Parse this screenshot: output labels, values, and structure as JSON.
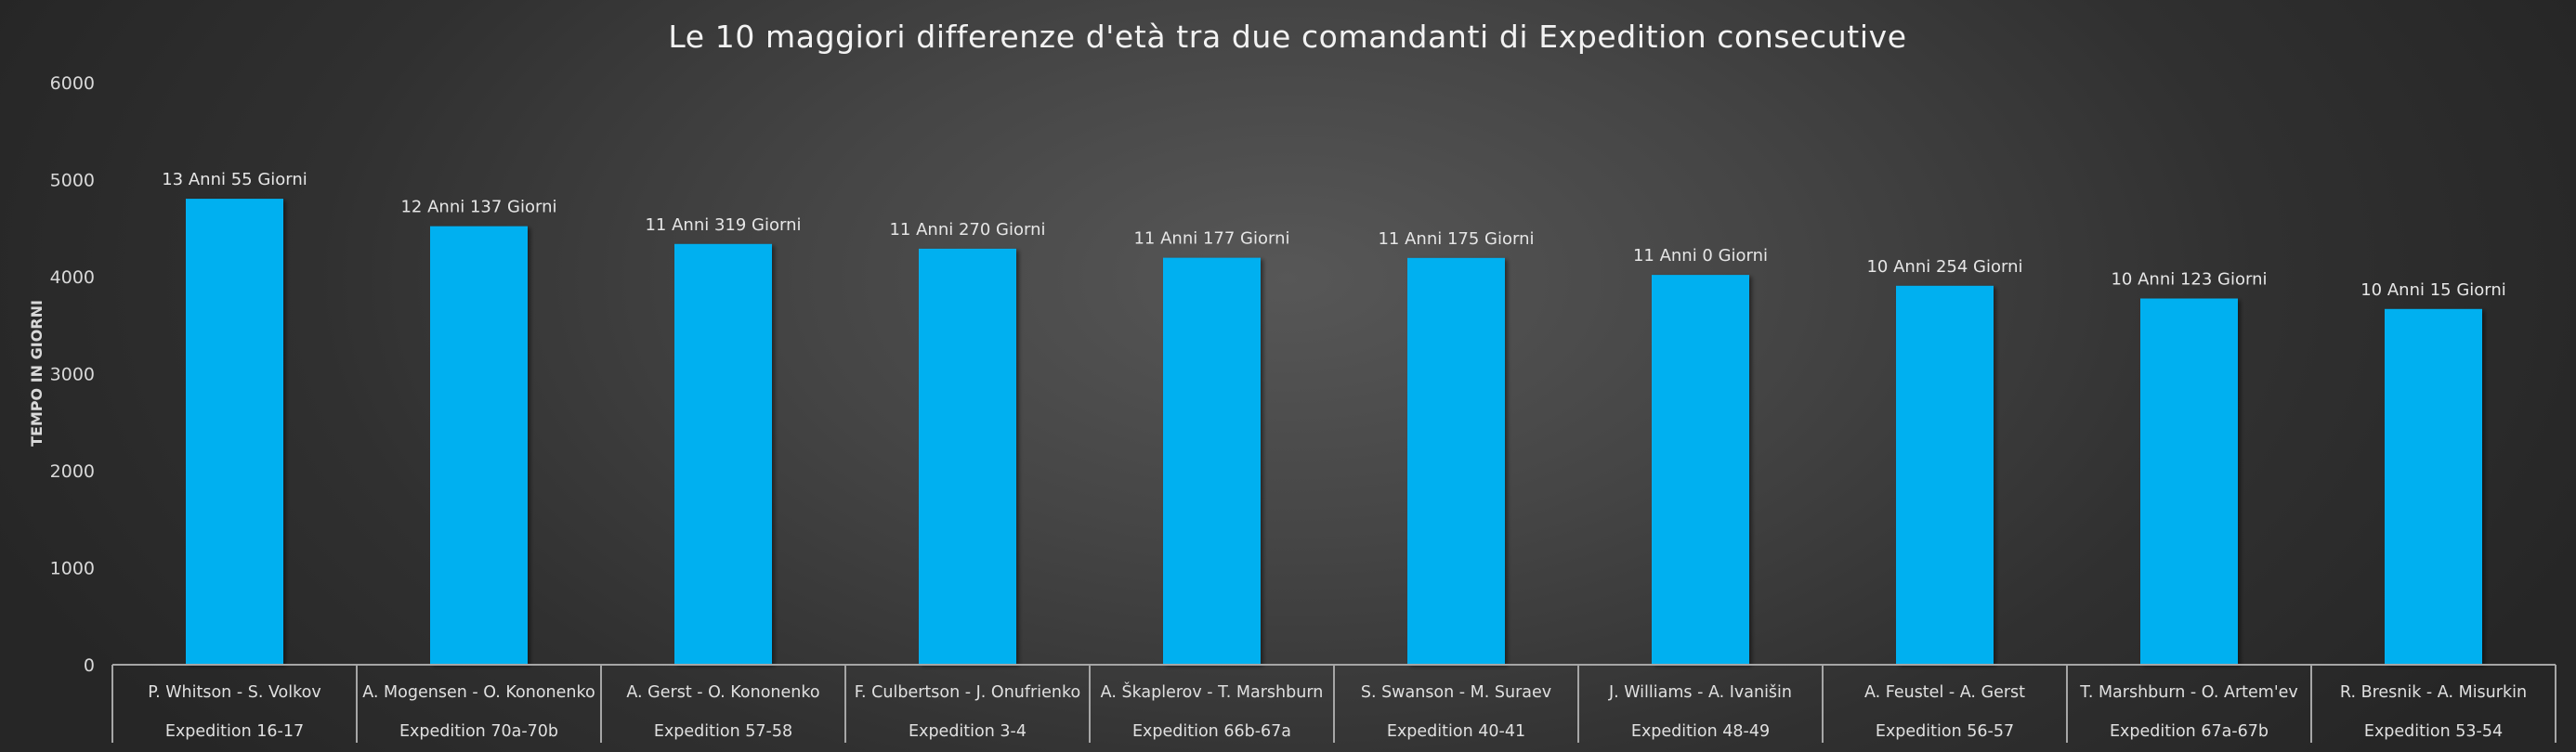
{
  "chart_data": {
    "type": "bar",
    "title": "Le 10 maggiori differenze d'età tra due comandanti di Expedition consecutive",
    "xlabel": "",
    "ylabel": "TEMPO IN GIORNI",
    "ylim": [
      0,
      6000
    ],
    "yticks": [
      0,
      1000,
      2000,
      3000,
      4000,
      5000,
      6000
    ],
    "grid": false,
    "bar_color": "#00B0F0",
    "categories": [
      {
        "names": "P. Whitson - S. Volkov",
        "expedition": "Expedition 16-17"
      },
      {
        "names": "A. Mogensen - O. Kononenko",
        "expedition": "Expedition 70a-70b"
      },
      {
        "names": "A. Gerst - O. Kononenko",
        "expedition": "Expedition 57-58"
      },
      {
        "names": "F. Culbertson - J. Onufrienko",
        "expedition": "Expedition 3-4"
      },
      {
        "names": "A. Škaplerov - T. Marshburn",
        "expedition": "Expedition 66b-67a"
      },
      {
        "names": "S. Swanson - M. Suraev",
        "expedition": "Expedition 40-41"
      },
      {
        "names": "J. Williams - A. Ivanišin",
        "expedition": "Expedition 48-49"
      },
      {
        "names": "A. Feustel - A. Gerst",
        "expedition": "Expedition 56-57"
      },
      {
        "names": "T. Marshburn - O. Artem'ev",
        "expedition": "Expedition 67a-67b"
      },
      {
        "names": "R. Bresnik - A. Misurkin",
        "expedition": "Expedition 53-54"
      }
    ],
    "values": [
      4803,
      4520,
      4337,
      4288,
      4195,
      4193,
      4018,
      3906,
      3775,
      3667
    ],
    "data_labels": [
      "13 Anni 55 Giorni",
      "12 Anni 137 Giorni",
      "11 Anni 319 Giorni",
      "11 Anni 270 Giorni",
      "11 Anni 177 Giorni",
      "11 Anni 175 Giorni",
      "11 Anni 0 Giorni",
      "10 Anni 254 Giorni",
      "10 Anni 123 Giorni",
      "10 Anni 15 Giorni"
    ]
  }
}
